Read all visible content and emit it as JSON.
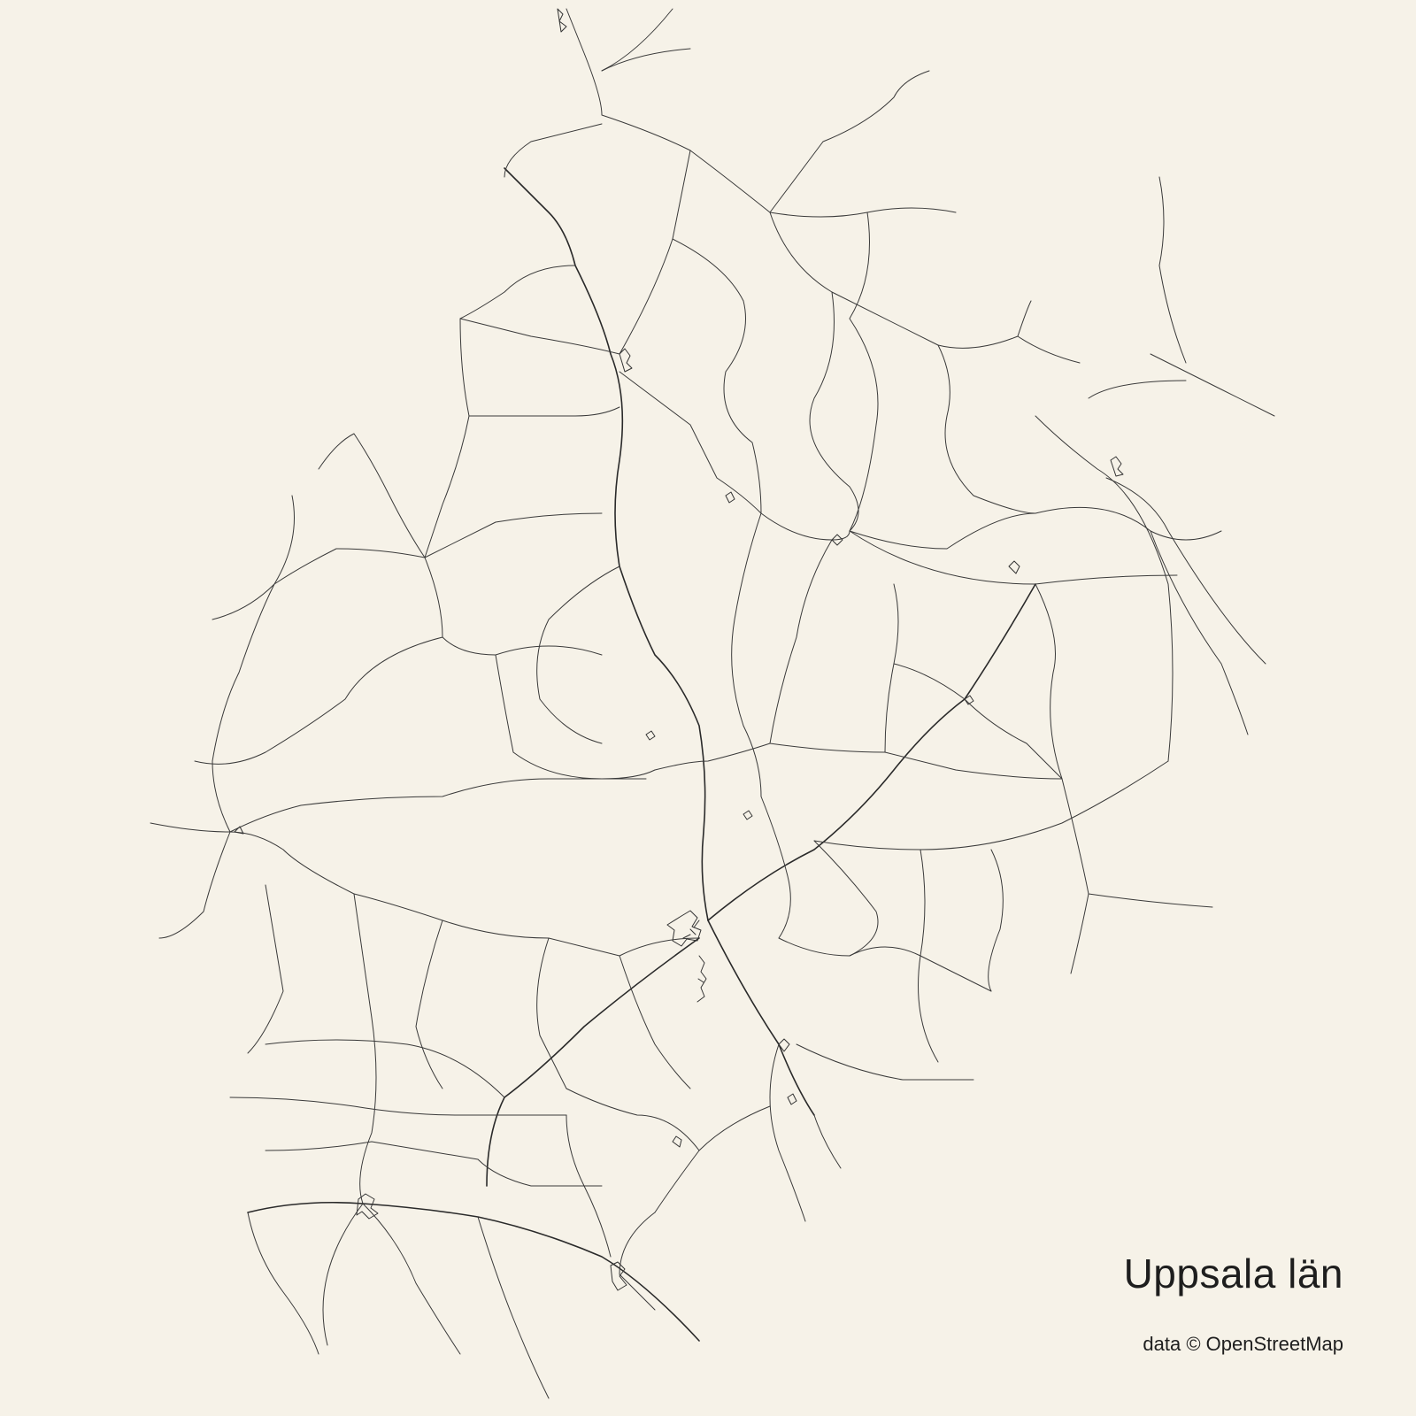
{
  "map": {
    "title": "Uppsala län",
    "credit": "data © OpenStreetMap",
    "colors": {
      "background": "#f6f2e8",
      "roads": "#3a3a3a",
      "text": "#1e1e1e"
    }
  }
}
